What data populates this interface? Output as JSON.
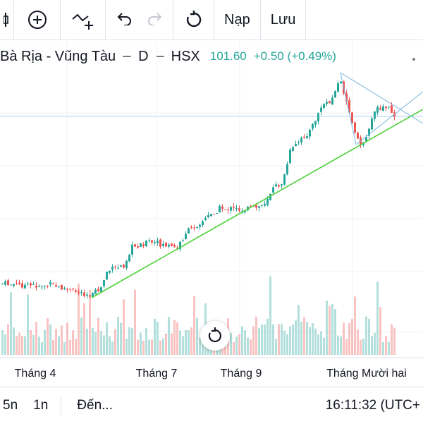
{
  "toolbar": {
    "load_label": "Nạp",
    "save_label": "Lưu"
  },
  "header": {
    "symbol": "Bà Rịa - Vũng Tàu",
    "interval": "D",
    "exchange": "HSX",
    "price": "101.60",
    "change": "+0.50 (+0.49%)"
  },
  "colors": {
    "up": "#26a69a",
    "down": "#ef5350",
    "trendline": "#4cd137",
    "triangle": "#7ab7e0"
  },
  "bottom": {
    "range_5d": "5n",
    "range_1d": "1n",
    "goto": "Đến...",
    "clock": "16:11:32 (UTC+"
  },
  "chart_data": {
    "type": "candlestick",
    "x_ticks": [
      "Tháng 4",
      "Tháng 7",
      "Tháng 9",
      "Tháng Mười hai"
    ],
    "last_price": 101.6,
    "annotations": [
      "ascending trendline",
      "symmetrical triangle",
      "horizontal line"
    ],
    "grid": true,
    "volume": true
  }
}
